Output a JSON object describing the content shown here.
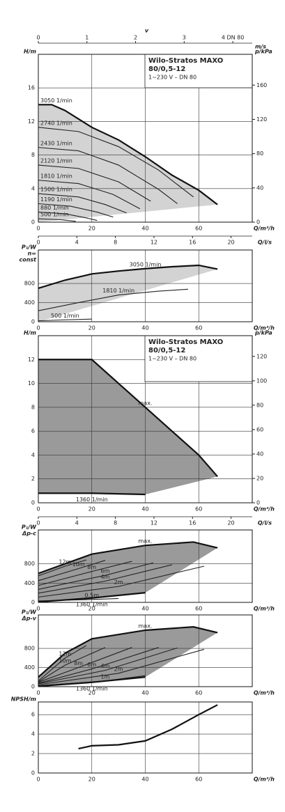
{
  "chart_data": [
    {
      "type": "line",
      "xlabel": "Q/m³/h",
      "ylabel": [
        "H/m"
      ],
      "y2label": "p/kPa",
      "xlim": [
        0,
        80
      ],
      "xticks": [
        0,
        20,
        40,
        60
      ],
      "ylim": [
        0,
        20
      ],
      "yticks": [
        0,
        4,
        8,
        12,
        16
      ],
      "y2lim": [
        0,
        196
      ],
      "y2ticks": [
        0,
        40,
        80,
        120,
        160
      ],
      "vlabel": "v",
      "vunit": "m/s",
      "vlim": [
        0,
        4.4
      ],
      "vticks": [
        0,
        1,
        2,
        3,
        {
          "value": 4,
          "label": "4 DN 80"
        }
      ],
      "x2label": "Q/l/s",
      "x2lim": [
        0,
        22.2
      ],
      "x2ticks": [
        0,
        4,
        8,
        12,
        16,
        20
      ],
      "box": [
        "Wilo-Stratos MAXO",
        "80/0,5-12",
        "1~230 V – DN 80"
      ],
      "grid": true,
      "region_color": "#d3d3d3",
      "series": [
        {
          "name": "3050 1/min",
          "color": "#111",
          "x": [
            0,
            5,
            10,
            20,
            30,
            40,
            50,
            60,
            67
          ],
          "values": [
            14,
            14,
            13.3,
            11.3,
            9.8,
            7.8,
            5.6,
            3.8,
            2.1
          ]
        },
        {
          "name": "2740 1/min",
          "color": "#222",
          "x": [
            0,
            15,
            30,
            45,
            58
          ],
          "values": [
            11.3,
            10.8,
            9,
            6.2,
            3
          ]
        },
        {
          "name": "2430 1/min",
          "color": "#222",
          "x": [
            0,
            15,
            30,
            45,
            52
          ],
          "values": [
            8.9,
            8.5,
            6.8,
            3.9,
            2.2
          ]
        },
        {
          "name": "2120 1/min",
          "color": "#222",
          "x": [
            0,
            15,
            30,
            42
          ],
          "values": [
            6.8,
            6.4,
            4.8,
            2.5
          ]
        },
        {
          "name": "1810 1/min",
          "color": "#222",
          "x": [
            0,
            15,
            28,
            38
          ],
          "values": [
            5,
            4.6,
            3.3,
            1.6
          ]
        },
        {
          "name": "1500 1/min",
          "color": "#222",
          "x": [
            0,
            15,
            25,
            33
          ],
          "values": [
            3.4,
            3,
            2.1,
            1.1
          ]
        },
        {
          "name": "1190 1/min",
          "color": "#222",
          "x": [
            0,
            12,
            22,
            28
          ],
          "values": [
            2.2,
            1.9,
            1.2,
            0.6
          ]
        },
        {
          "name": "880 1/min",
          "color": "#222",
          "x": [
            0,
            10,
            18,
            22
          ],
          "values": [
            1.2,
            1,
            0.5,
            0.2
          ]
        },
        {
          "name": "500 1/min",
          "color": "#222",
          "x": [
            0,
            8,
            14
          ],
          "values": [
            0.4,
            0.3,
            0.1
          ]
        }
      ]
    },
    {
      "type": "line",
      "xlabel": "Q/m³/h",
      "ylabel": [
        "P₁/W",
        "n=",
        "const"
      ],
      "xlim": [
        0,
        80
      ],
      "xticks": [
        0,
        20,
        40,
        60
      ],
      "ylim": [
        0,
        1500
      ],
      "yticks": [
        0,
        400,
        800
      ],
      "grid": true,
      "region_color": "#d3d3d3",
      "series": [
        {
          "name": "3050 1/min",
          "color": "#111",
          "x": [
            0,
            10,
            20,
            30,
            40,
            50,
            60,
            67
          ],
          "values": [
            700,
            870,
            1000,
            1060,
            1110,
            1150,
            1180,
            1100
          ]
        },
        {
          "name": "1810 1/min",
          "color": "#222",
          "x": [
            0,
            15,
            30,
            45,
            56
          ],
          "values": [
            230,
            400,
            560,
            640,
            680
          ]
        },
        {
          "name": "500 1/min",
          "color": "#222",
          "x": [
            0,
            10,
            20
          ],
          "values": [
            20,
            40,
            55
          ]
        }
      ]
    },
    {
      "type": "line",
      "xlabel": "Q/m³/h",
      "ylabel": [
        "H/m"
      ],
      "y2label": "p/kPa",
      "xlim": [
        0,
        80
      ],
      "xticks": [
        0,
        20,
        40,
        60
      ],
      "ylim": [
        0,
        14
      ],
      "yticks": [
        0,
        2,
        4,
        6,
        8,
        10,
        12
      ],
      "y2lim": [
        0,
        137
      ],
      "y2ticks": [
        0,
        20,
        40,
        60,
        80,
        100,
        120
      ],
      "x2label": "Q/l/s",
      "x2lim": [
        0,
        22.2
      ],
      "x2ticks": [
        0,
        4,
        8,
        12,
        16,
        20
      ],
      "box": [
        "Wilo-Stratos MAXO",
        "80/0,5-12",
        "1~230 V – DN 80"
      ],
      "grid": true,
      "region_color": "#9a9a9a",
      "series": [
        {
          "name": "max.",
          "color": "#111",
          "x": [
            0,
            20,
            30,
            40,
            50,
            60,
            67
          ],
          "values": [
            12,
            12,
            10,
            8,
            6,
            4,
            2.2
          ]
        },
        {
          "name": "1360 1/min",
          "color": "#111",
          "x": [
            0,
            20,
            40
          ],
          "values": [
            0.8,
            0.8,
            0.7
          ]
        }
      ]
    },
    {
      "type": "line",
      "xlabel": "Q/m³/h",
      "ylabel": [
        "P₁/W",
        "Δp-c"
      ],
      "xlim": [
        0,
        80
      ],
      "xticks": [
        0,
        20,
        40,
        60
      ],
      "ylim": [
        0,
        1500
      ],
      "yticks": [
        0,
        400,
        800
      ],
      "grid": true,
      "region_color": "#9a9a9a",
      "series": [
        {
          "name": "max.",
          "color": "#111",
          "x": [
            0,
            20,
            40,
            58,
            67
          ],
          "values": [
            600,
            1000,
            1180,
            1250,
            1130
          ]
        },
        {
          "name": "12m",
          "color": "#222",
          "x": [
            0,
            10,
            18
          ],
          "values": [
            550,
            750,
            880
          ]
        },
        {
          "name": "10m",
          "color": "#222",
          "x": [
            0,
            15,
            25
          ],
          "values": [
            450,
            700,
            870
          ]
        },
        {
          "name": "8m",
          "color": "#222",
          "x": [
            0,
            20,
            35
          ],
          "values": [
            350,
            640,
            850
          ]
        },
        {
          "name": "6m",
          "color": "#222",
          "x": [
            0,
            25,
            43
          ],
          "values": [
            270,
            560,
            820
          ]
        },
        {
          "name": "4m",
          "color": "#222",
          "x": [
            0,
            25,
            50
          ],
          "values": [
            190,
            440,
            780
          ]
        },
        {
          "name": "2m",
          "color": "#222",
          "x": [
            0,
            30,
            62
          ],
          "values": [
            110,
            330,
            750
          ]
        },
        {
          "name": "0,5m",
          "color": "#222",
          "x": [
            0,
            20,
            30
          ],
          "values": [
            30,
            60,
            80
          ]
        },
        {
          "name": "1360 1/min",
          "color": "#111",
          "x": [
            0,
            20,
            40
          ],
          "values": [
            10,
            90,
            200
          ]
        }
      ]
    },
    {
      "type": "line",
      "xlabel": "Q/m³/h",
      "ylabel": [
        "P₁/W",
        "Δp-v"
      ],
      "xlim": [
        0,
        80
      ],
      "xticks": [
        0,
        20,
        40,
        60
      ],
      "ylim": [
        0,
        1500
      ],
      "yticks": [
        0,
        400,
        800
      ],
      "grid": true,
      "region_color": "#9a9a9a",
      "series": [
        {
          "name": "max.",
          "color": "#111",
          "x": [
            0,
            10,
            20,
            40,
            58,
            67
          ],
          "values": [
            200,
            700,
            1000,
            1180,
            1250,
            1130
          ]
        },
        {
          "name": "12m",
          "color": "#222",
          "x": [
            0,
            10,
            18
          ],
          "values": [
            120,
            600,
            860
          ]
        },
        {
          "name": "10m",
          "color": "#222",
          "x": [
            0,
            10,
            25
          ],
          "values": [
            100,
            450,
            820
          ]
        },
        {
          "name": "8m",
          "color": "#222",
          "x": [
            0,
            15,
            35
          ],
          "values": [
            90,
            400,
            820
          ]
        },
        {
          "name": "6m",
          "color": "#222",
          "x": [
            0,
            20,
            45
          ],
          "values": [
            70,
            370,
            820
          ]
        },
        {
          "name": "4m",
          "color": "#222",
          "x": [
            0,
            25,
            52
          ],
          "values": [
            60,
            340,
            810
          ]
        },
        {
          "name": "2m",
          "color": "#222",
          "x": [
            0,
            30,
            62
          ],
          "values": [
            40,
            280,
            780
          ]
        },
        {
          "name": "1m",
          "color": "#222",
          "x": [
            0,
            25,
            40
          ],
          "values": [
            20,
            120,
            230
          ]
        },
        {
          "name": "1360 1/min",
          "color": "#111",
          "x": [
            0,
            20,
            40
          ],
          "values": [
            10,
            90,
            200
          ]
        }
      ]
    },
    {
      "type": "line",
      "xlabel": "Q/m³/h",
      "ylabel": [
        "NPSH/m"
      ],
      "xlim": [
        0,
        80
      ],
      "xticks": [
        0,
        20,
        40,
        60
      ],
      "ylim": [
        0,
        7.3
      ],
      "yticks": [
        0,
        2,
        4,
        6
      ],
      "grid": true,
      "series": [
        {
          "color": "#111",
          "x": [
            15,
            20,
            30,
            40,
            50,
            60,
            67
          ],
          "values": [
            2.5,
            2.8,
            2.9,
            3.3,
            4.5,
            6,
            7
          ]
        }
      ]
    }
  ]
}
